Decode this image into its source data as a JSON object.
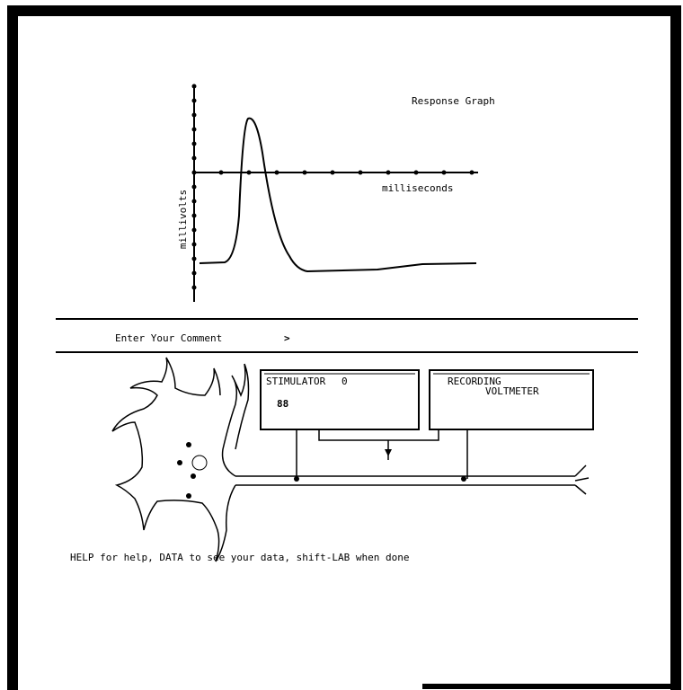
{
  "graph": {
    "title": "Response Graph",
    "y_label": "millivolts",
    "x_label": "milliseconds"
  },
  "comment": {
    "prompt": "Enter Your Comment",
    "cursor": ">"
  },
  "stimulator": {
    "label": "STIMULATOR",
    "indicator": "0",
    "reading": "88"
  },
  "recorder": {
    "label": "RECORDING",
    "device": "VOLTMETER"
  },
  "footer": "HELP for help, DATA to see your data, shift-LAB when done"
}
